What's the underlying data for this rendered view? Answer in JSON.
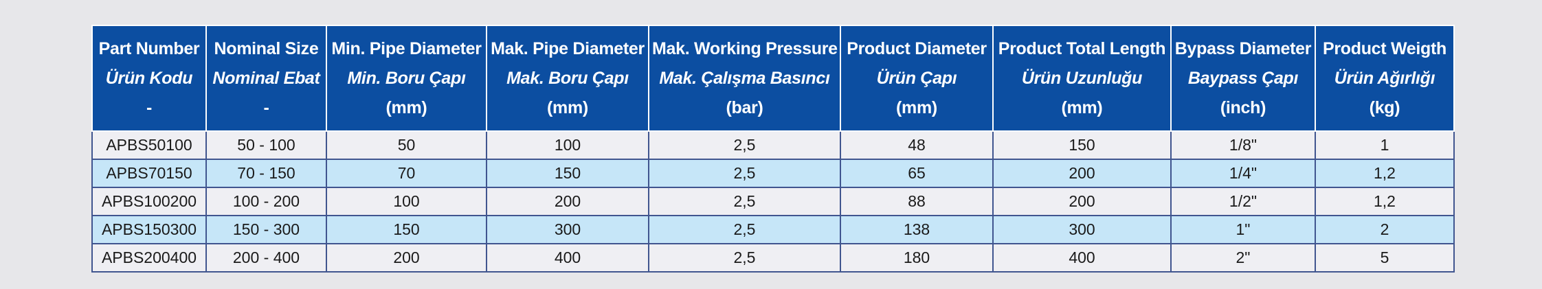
{
  "table": {
    "header": [
      [
        "Part Number",
        "Ürün Kodu",
        "-"
      ],
      [
        "Nominal Size",
        "Nominal Ebat",
        "-"
      ],
      [
        "Min. Pipe Diameter",
        "Min. Boru Çapı",
        "(mm)"
      ],
      [
        "Mak. Pipe Diameter",
        "Mak. Boru Çapı",
        "(mm)"
      ],
      [
        "Mak. Working Pressure",
        "Mak. Çalışma Basıncı",
        "(bar)"
      ],
      [
        "Product Diameter",
        "Ürün Çapı",
        "(mm)"
      ],
      [
        "Product Total Length",
        "Ürün Uzunluğu",
        "(mm)"
      ],
      [
        "Bypass Diameter",
        "Baypass Çapı",
        "(inch)"
      ],
      [
        "Product Weigth",
        "Ürün Ağırlığı",
        "(kg)"
      ]
    ],
    "rows": [
      [
        "APBS50100",
        "50 - 100",
        "50",
        "100",
        "2,5",
        "48",
        "150",
        "1/8\"",
        "1"
      ],
      [
        "APBS70150",
        "70 - 150",
        "70",
        "150",
        "2,5",
        "65",
        "200",
        "1/4\"",
        "1,2"
      ],
      [
        "APBS100200",
        "100 - 200",
        "100",
        "200",
        "2,5",
        "88",
        "200",
        "1/2\"",
        "1,2"
      ],
      [
        "APBS150300",
        "150 - 300",
        "150",
        "300",
        "2,5",
        "138",
        "300",
        "1\"",
        "2"
      ],
      [
        "APBS200400",
        "200 - 400",
        "200",
        "400",
        "2,5",
        "180",
        "400",
        "2\"",
        "5"
      ]
    ]
  }
}
